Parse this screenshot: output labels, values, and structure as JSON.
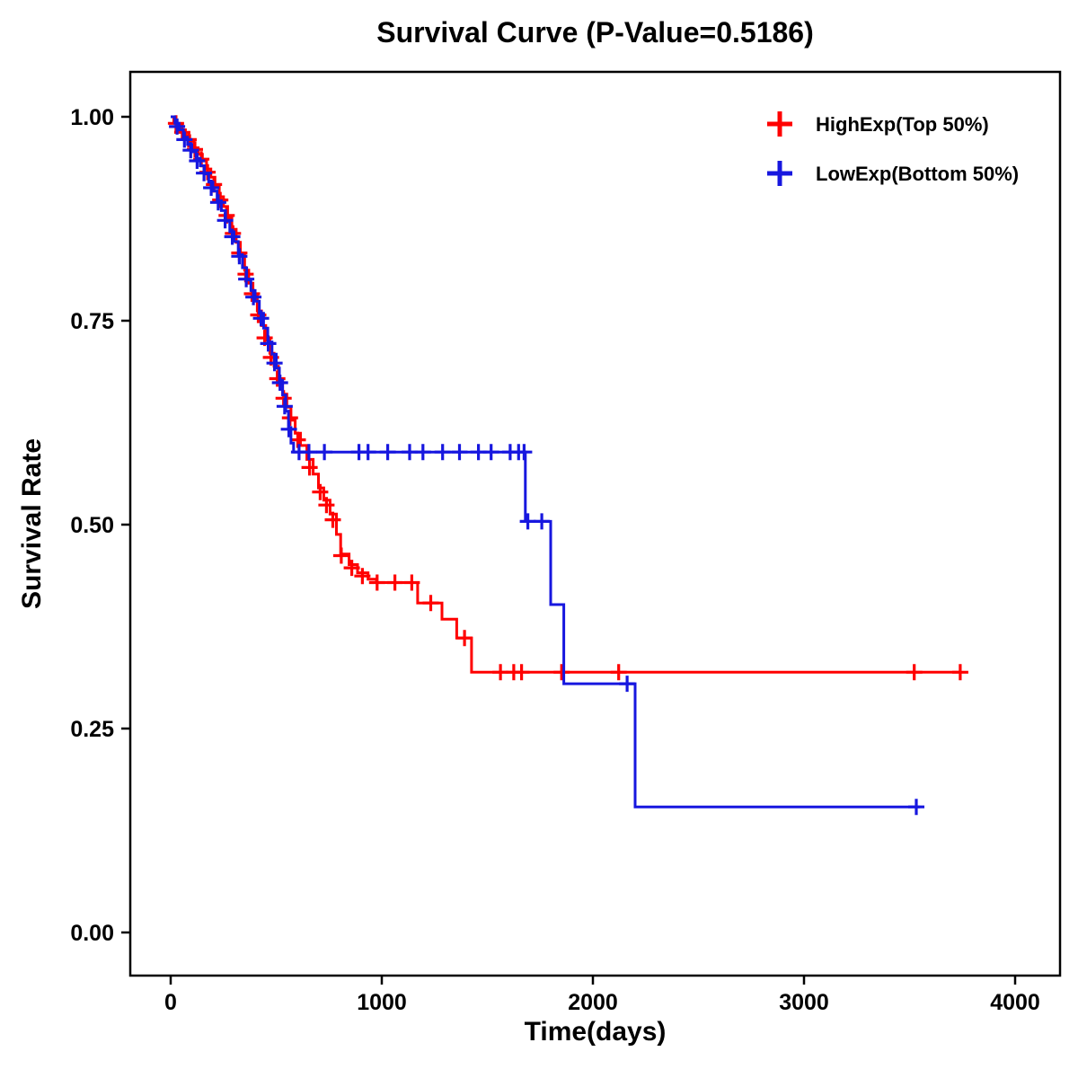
{
  "chart_data": {
    "type": "line",
    "subtype": "kaplan-meier-step-survival",
    "title": "Survival Curve (P-Value=0.5186)",
    "p_value": "0.5186",
    "xlabel": "Time(days)",
    "ylabel": "Survival Rate",
    "x_range": [
      -190,
      4210
    ],
    "y_range": [
      -0.05,
      1.06
    ],
    "grid": "off",
    "legend_position": "top-right-inside",
    "x_axis": {
      "tick_values": [
        0,
        1000,
        2000,
        3000,
        4000
      ],
      "tick_labels": [
        "0",
        "1000",
        "2000",
        "3000",
        "4000"
      ]
    },
    "y_axis": {
      "tick_values": [
        0,
        0.25,
        0.5,
        0.75,
        1.0
      ],
      "tick_labels": [
        "0.00",
        "0.25",
        "0.50",
        "0.75",
        "1.00"
      ]
    },
    "series": [
      {
        "id": "highexp",
        "name": "HighExp(Top 50%)",
        "color": "#FF0000",
        "points": [
          [
            0,
            1.0
          ],
          [
            15,
            0.995
          ],
          [
            30,
            0.99
          ],
          [
            50,
            0.984
          ],
          [
            70,
            0.977
          ],
          [
            90,
            0.97
          ],
          [
            110,
            0.962
          ],
          [
            130,
            0.954
          ],
          [
            150,
            0.946
          ],
          [
            170,
            0.936
          ],
          [
            190,
            0.926
          ],
          [
            210,
            0.914
          ],
          [
            230,
            0.902
          ],
          [
            250,
            0.89
          ],
          [
            270,
            0.876
          ],
          [
            290,
            0.862
          ],
          [
            310,
            0.846
          ],
          [
            330,
            0.83
          ],
          [
            350,
            0.812
          ],
          [
            370,
            0.796
          ],
          [
            390,
            0.78
          ],
          [
            410,
            0.762
          ],
          [
            430,
            0.744
          ],
          [
            450,
            0.726
          ],
          [
            470,
            0.71
          ],
          [
            490,
            0.694
          ],
          [
            510,
            0.676
          ],
          [
            530,
            0.66
          ],
          [
            550,
            0.644
          ],
          [
            570,
            0.628
          ],
          [
            590,
            0.612
          ],
          [
            615,
            0.597
          ],
          [
            645,
            0.58
          ],
          [
            675,
            0.562
          ],
          [
            700,
            0.545
          ],
          [
            725,
            0.53
          ],
          [
            755,
            0.513
          ],
          [
            785,
            0.488
          ],
          [
            805,
            0.464
          ],
          [
            845,
            0.451
          ],
          [
            885,
            0.441
          ],
          [
            935,
            0.433
          ],
          [
            975,
            0.429
          ],
          [
            1170,
            0.404
          ],
          [
            1285,
            0.384
          ],
          [
            1355,
            0.361
          ],
          [
            1425,
            0.319
          ],
          [
            3745,
            0.319
          ]
        ],
        "censor_marks": [
          [
            25,
            0.992
          ],
          [
            55,
            0.981
          ],
          [
            85,
            0.972
          ],
          [
            115,
            0.96
          ],
          [
            145,
            0.948
          ],
          [
            175,
            0.932
          ],
          [
            205,
            0.917
          ],
          [
            235,
            0.898
          ],
          [
            265,
            0.879
          ],
          [
            295,
            0.857
          ],
          [
            325,
            0.833
          ],
          [
            355,
            0.807
          ],
          [
            385,
            0.783
          ],
          [
            415,
            0.757
          ],
          [
            445,
            0.729
          ],
          [
            475,
            0.705
          ],
          [
            505,
            0.679
          ],
          [
            535,
            0.655
          ],
          [
            565,
            0.631
          ],
          [
            602,
            0.604
          ],
          [
            658,
            0.57
          ],
          [
            708,
            0.54
          ],
          [
            738,
            0.524
          ],
          [
            768,
            0.506
          ],
          [
            808,
            0.462
          ],
          [
            858,
            0.447
          ],
          [
            908,
            0.437
          ],
          [
            978,
            0.429
          ],
          [
            1062,
            0.429
          ],
          [
            1142,
            0.429
          ],
          [
            1232,
            0.404
          ],
          [
            1392,
            0.361
          ],
          [
            1562,
            0.319
          ],
          [
            1625,
            0.319
          ],
          [
            1662,
            0.319
          ],
          [
            1852,
            0.319
          ],
          [
            2122,
            0.319
          ],
          [
            3522,
            0.319
          ],
          [
            3740,
            0.319
          ]
        ]
      },
      {
        "id": "lowexp",
        "name": "LowExp(Bottom 50%)",
        "color": "#1717DF",
        "points": [
          [
            0,
            1.0
          ],
          [
            20,
            0.992
          ],
          [
            40,
            0.984
          ],
          [
            60,
            0.975
          ],
          [
            80,
            0.966
          ],
          [
            100,
            0.957
          ],
          [
            120,
            0.949
          ],
          [
            140,
            0.94
          ],
          [
            160,
            0.93
          ],
          [
            180,
            0.92
          ],
          [
            200,
            0.909
          ],
          [
            220,
            0.897
          ],
          [
            240,
            0.885
          ],
          [
            260,
            0.872
          ],
          [
            280,
            0.859
          ],
          [
            300,
            0.847
          ],
          [
            320,
            0.831
          ],
          [
            340,
            0.815
          ],
          [
            360,
            0.8
          ],
          [
            380,
            0.787
          ],
          [
            400,
            0.774
          ],
          [
            420,
            0.759
          ],
          [
            440,
            0.741
          ],
          [
            460,
            0.724
          ],
          [
            480,
            0.709
          ],
          [
            500,
            0.692
          ],
          [
            515,
            0.677
          ],
          [
            530,
            0.659
          ],
          [
            545,
            0.639
          ],
          [
            558,
            0.619
          ],
          [
            570,
            0.6
          ],
          [
            582,
            0.589
          ],
          [
            1680,
            0.504
          ],
          [
            1800,
            0.402
          ],
          [
            1862,
            0.305
          ],
          [
            2200,
            0.154
          ],
          [
            3550,
            0.154
          ]
        ],
        "censor_marks": [
          [
            30,
            0.988
          ],
          [
            65,
            0.972
          ],
          [
            95,
            0.959
          ],
          [
            125,
            0.946
          ],
          [
            158,
            0.931
          ],
          [
            192,
            0.913
          ],
          [
            225,
            0.895
          ],
          [
            258,
            0.873
          ],
          [
            292,
            0.853
          ],
          [
            325,
            0.829
          ],
          [
            358,
            0.801
          ],
          [
            392,
            0.779
          ],
          [
            428,
            0.753
          ],
          [
            462,
            0.722
          ],
          [
            492,
            0.698
          ],
          [
            518,
            0.674
          ],
          [
            540,
            0.645
          ],
          [
            560,
            0.617
          ],
          [
            608,
            0.589
          ],
          [
            655,
            0.589
          ],
          [
            728,
            0.589
          ],
          [
            892,
            0.589
          ],
          [
            935,
            0.589
          ],
          [
            1028,
            0.589
          ],
          [
            1132,
            0.589
          ],
          [
            1195,
            0.589
          ],
          [
            1288,
            0.589
          ],
          [
            1368,
            0.589
          ],
          [
            1458,
            0.589
          ],
          [
            1518,
            0.589
          ],
          [
            1608,
            0.589
          ],
          [
            1648,
            0.589
          ],
          [
            1674,
            0.589
          ],
          [
            1692,
            0.504
          ],
          [
            1758,
            0.504
          ],
          [
            2162,
            0.305
          ],
          [
            3532,
            0.154
          ]
        ]
      }
    ],
    "style": {
      "axis_color": "#000000",
      "text_color": "#000000",
      "background": "#ffffff",
      "curve_width": 3,
      "censor_half_size": 9,
      "legend_marker_half_size": 14
    }
  }
}
